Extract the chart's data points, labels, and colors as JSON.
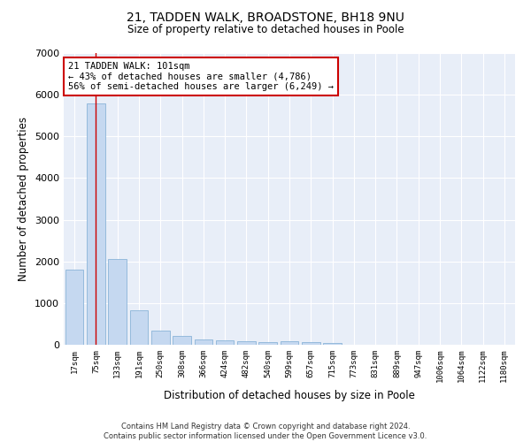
{
  "title_line1": "21, TADDEN WALK, BROADSTONE, BH18 9NU",
  "title_line2": "Size of property relative to detached houses in Poole",
  "xlabel": "Distribution of detached houses by size in Poole",
  "ylabel": "Number of detached properties",
  "categories": [
    "17sqm",
    "75sqm",
    "133sqm",
    "191sqm",
    "250sqm",
    "308sqm",
    "366sqm",
    "424sqm",
    "482sqm",
    "540sqm",
    "599sqm",
    "657sqm",
    "715sqm",
    "773sqm",
    "831sqm",
    "889sqm",
    "947sqm",
    "1006sqm",
    "1064sqm",
    "1122sqm",
    "1180sqm"
  ],
  "values": [
    1800,
    5800,
    2050,
    820,
    340,
    215,
    135,
    110,
    80,
    60,
    80,
    55,
    40,
    0,
    0,
    0,
    0,
    0,
    0,
    0,
    0
  ],
  "bar_color": "#c5d8f0",
  "bar_edge_color": "#8ab4d8",
  "vline_x": 1,
  "vline_color": "#cc0000",
  "annotation_text_line1": "21 TADDEN WALK: 101sqm",
  "annotation_text_line2": "← 43% of detached houses are smaller (4,786)",
  "annotation_text_line3": "56% of semi-detached houses are larger (6,249) →",
  "annotation_box_color": "#ffffff",
  "annotation_border_color": "#cc0000",
  "ylim": [
    0,
    7000
  ],
  "yticks": [
    0,
    1000,
    2000,
    3000,
    4000,
    5000,
    6000,
    7000
  ],
  "background_color": "#e8eef8",
  "footer_line1": "Contains HM Land Registry data © Crown copyright and database right 2024.",
  "footer_line2": "Contains public sector information licensed under the Open Government Licence v3.0."
}
